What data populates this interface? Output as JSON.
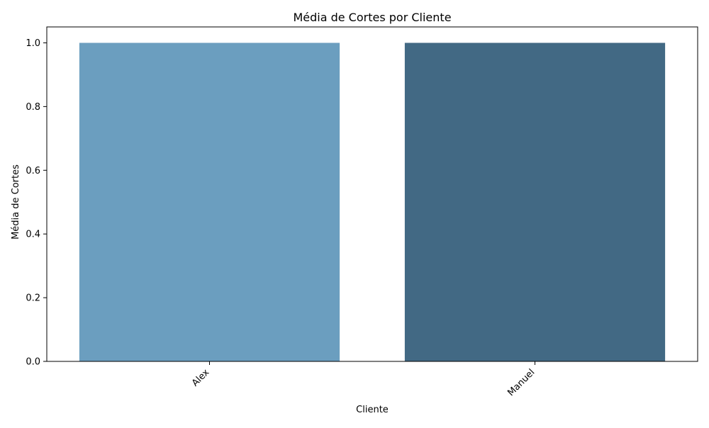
{
  "chart_data": {
    "type": "bar",
    "title": "Média de Cortes por Cliente",
    "xlabel": "Cliente",
    "ylabel": "Média de Cortes",
    "categories": [
      "Alex",
      "Manuel"
    ],
    "values": [
      1.0,
      1.0
    ],
    "colors": [
      "#6b9ebf",
      "#426984"
    ],
    "ylim": [
      0,
      1.05
    ],
    "yticks": [
      "0.0",
      "0.2",
      "0.4",
      "0.6",
      "0.8",
      "1.0"
    ],
    "ytick_values": [
      0,
      0.2,
      0.4,
      0.6,
      0.8,
      1.0
    ],
    "grid": false,
    "legend": "none",
    "x_tick_rotation": "45°"
  }
}
